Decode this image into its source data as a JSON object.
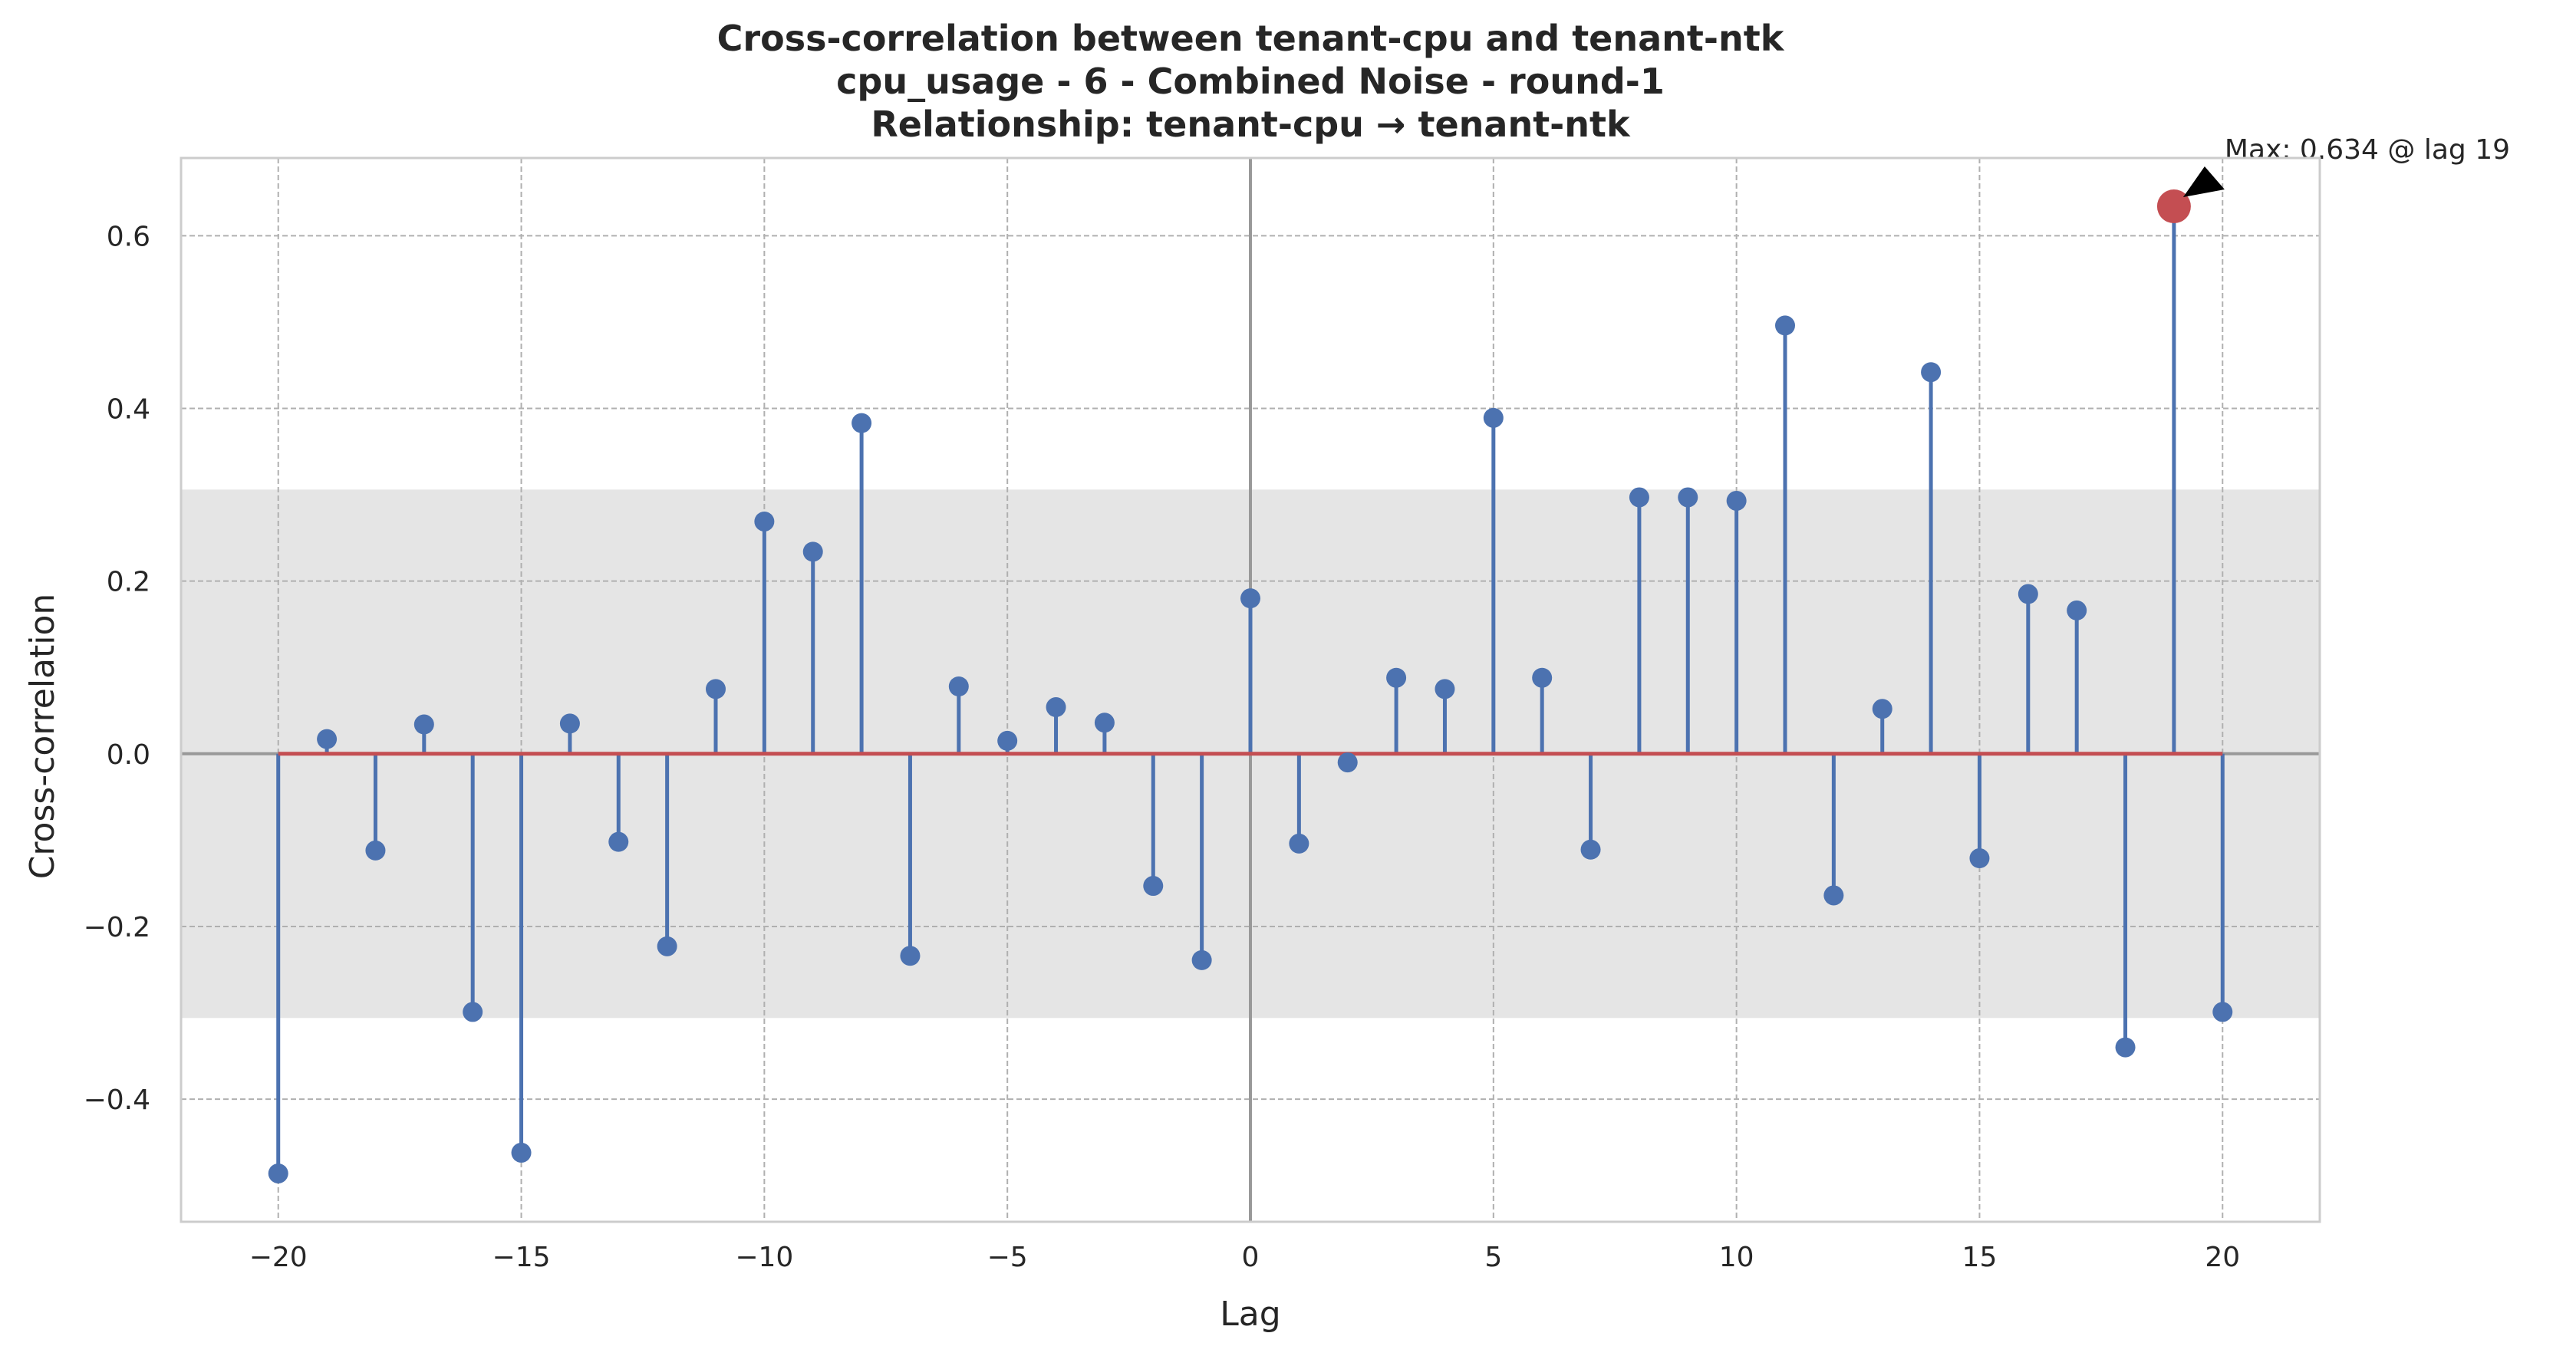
{
  "chart_data": {
    "type": "stem",
    "title_lines": [
      "Cross-correlation between tenant-cpu and tenant-ntk",
      "cpu_usage - 6 - Combined Noise - round-1",
      "Relationship: tenant-cpu → tenant-ntk"
    ],
    "xlabel": "Lag",
    "ylabel": "Cross-correlation",
    "xlim": [
      -22,
      22
    ],
    "ylim": [
      -0.542,
      0.69
    ],
    "x_ticks": [
      -20,
      -15,
      -10,
      -5,
      0,
      5,
      10,
      15,
      20
    ],
    "x_tick_labels": [
      "−20",
      "−15",
      "−10",
      "−5",
      "0",
      "5",
      "10",
      "15",
      "20"
    ],
    "y_ticks": [
      -0.4,
      -0.2,
      0.0,
      0.2,
      0.4,
      0.6
    ],
    "y_tick_labels": [
      "−0.4",
      "−0.2",
      "0.0",
      "0.2",
      "0.4",
      "0.6"
    ],
    "grid": true,
    "confidence_band": [
      -0.306,
      0.306
    ],
    "lags": [
      -20,
      -19,
      -18,
      -17,
      -16,
      -15,
      -14,
      -13,
      -12,
      -11,
      -10,
      -9,
      -8,
      -7,
      -6,
      -5,
      -4,
      -3,
      -2,
      -1,
      0,
      1,
      2,
      3,
      4,
      5,
      6,
      7,
      8,
      9,
      10,
      11,
      12,
      13,
      14,
      15,
      16,
      17,
      18,
      19,
      20
    ],
    "values": [
      -0.486,
      0.017,
      -0.112,
      0.034,
      -0.299,
      -0.462,
      0.035,
      -0.102,
      -0.223,
      0.075,
      0.269,
      0.234,
      0.383,
      -0.234,
      0.078,
      0.015,
      0.054,
      0.036,
      -0.153,
      -0.239,
      0.18,
      -0.104,
      -0.01,
      0.088,
      0.075,
      0.389,
      0.088,
      -0.111,
      0.297,
      0.297,
      0.293,
      0.496,
      -0.164,
      0.052,
      0.442,
      -0.121,
      0.185,
      0.166,
      -0.34,
      0.634,
      -0.299
    ],
    "max_point": {
      "lag": 19,
      "value": 0.634
    },
    "annotation": "Max: 0.634 @ lag 19",
    "colors": {
      "stem": "#4c72b0",
      "baseline": "#c44e52",
      "max_marker": "#c44e52",
      "band": "#e5e5e5",
      "zero_line": "#999999",
      "grid": "#b0b0b0",
      "frame": "#cccccc"
    }
  }
}
